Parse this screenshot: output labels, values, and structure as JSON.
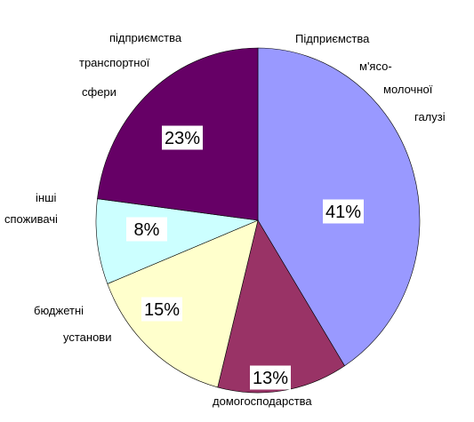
{
  "chart_data": {
    "type": "pie",
    "title": "",
    "slices": [
      {
        "label_lines": [
          "Підприємства",
          "м'ясо-",
          "молочної",
          "галузі"
        ],
        "value": 41,
        "display": "41%",
        "color": "#9999ff"
      },
      {
        "label_lines": [
          "домогосподарства"
        ],
        "value": 13,
        "display": "13%",
        "color": "#993366"
      },
      {
        "label_lines": [
          "бюджетні",
          "установи"
        ],
        "value": 15,
        "display": "15%",
        "color": "#ffffcc"
      },
      {
        "label_lines": [
          "інші",
          "споживачі"
        ],
        "value": 8,
        "display": "8%",
        "color": "#ccffff"
      },
      {
        "label_lines": [
          "підприємства",
          "транспортної",
          "сфери"
        ],
        "value": 23,
        "display": "23%",
        "color": "#660066"
      }
    ]
  }
}
